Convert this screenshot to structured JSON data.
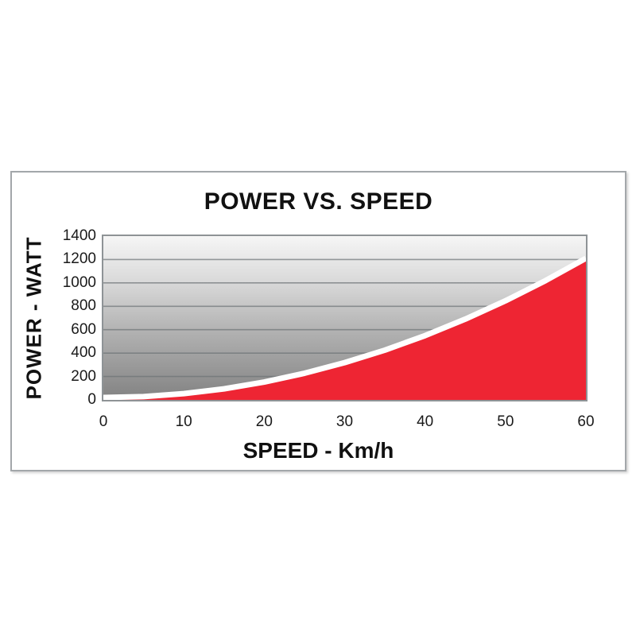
{
  "figure": {
    "title": "POWER VS. SPEED",
    "x_axis_title": "SPEED - Km/h",
    "y_axis_title": "POWER - WATT"
  },
  "chart_data": {
    "type": "area",
    "title": "POWER VS. SPEED",
    "xlabel": "SPEED - Km/h",
    "ylabel": "POWER - WATT",
    "x": [
      0,
      5,
      10,
      15,
      20,
      25,
      30,
      35,
      40,
      45,
      50,
      55,
      60
    ],
    "y": [
      0,
      8,
      33,
      74,
      132,
      207,
      298,
      405,
      529,
      670,
      827,
      1000,
      1190
    ],
    "xlim": [
      0,
      60
    ],
    "ylim": [
      0,
      1400
    ],
    "xticks": [
      0,
      10,
      20,
      30,
      40,
      50,
      60
    ],
    "yticks": [
      0,
      200,
      400,
      600,
      800,
      1000,
      1200,
      1400
    ],
    "grid": true,
    "legend": false,
    "colors": {
      "area_fill": "#EE2533",
      "curve_stroke": "#FFFFFF",
      "plot_gradient_top": "#F6F6F6",
      "plot_gradient_bottom": "#828282",
      "gridline": "#6E7376",
      "frame": "#8E9396",
      "box_border": "#A3A7AA",
      "text": "#1A1A1A"
    }
  }
}
